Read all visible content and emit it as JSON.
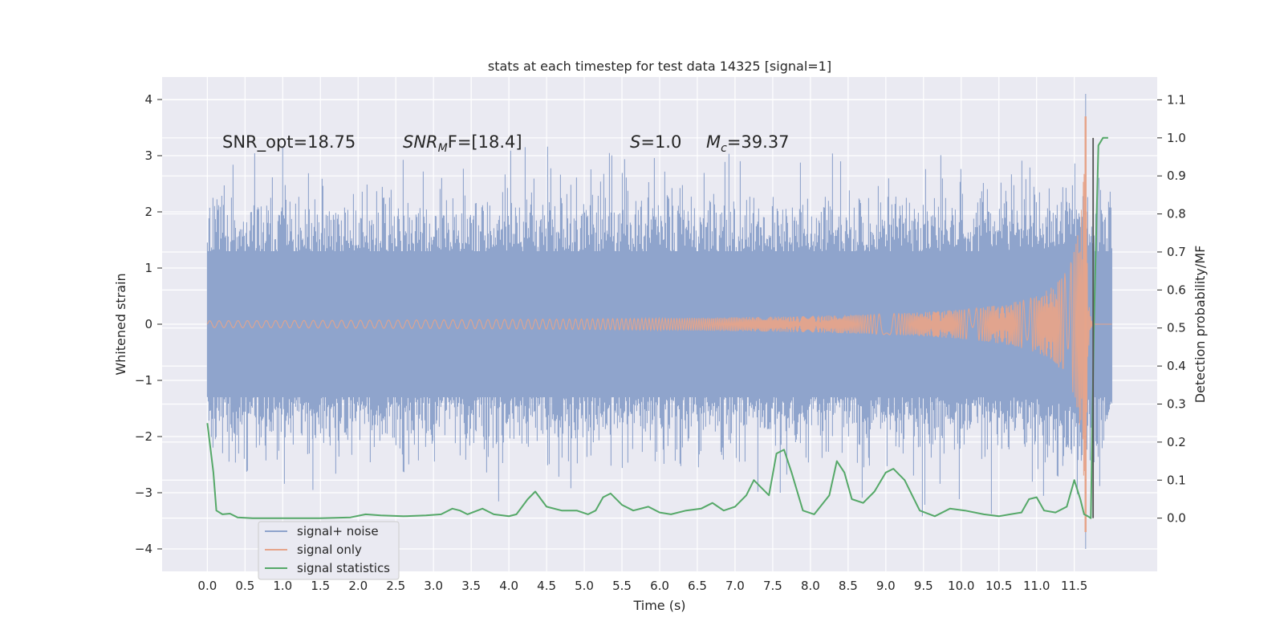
{
  "chart_data": {
    "type": "line",
    "title": "stats at each timestep for test data 14325 [signal=1]",
    "xlabel": "Time (s)",
    "ylabel": "Whitened strain",
    "y2label": "Detection probability/MF",
    "xlim": [
      -0.6,
      12.6
    ],
    "ylim": [
      -4.4,
      4.4
    ],
    "y2lim": [
      -0.14,
      1.16
    ],
    "x_ticks": [
      0.0,
      0.5,
      1.0,
      1.5,
      2.0,
      2.5,
      3.0,
      3.5,
      4.0,
      4.5,
      5.0,
      5.5,
      6.0,
      6.5,
      7.0,
      7.5,
      8.0,
      8.5,
      9.0,
      9.5,
      10.0,
      10.5,
      11.0,
      11.5
    ],
    "x_tick_labels": [
      "0.0",
      "0.5",
      "1.0",
      "1.5",
      "2.0",
      "2.5",
      "3.0",
      "3.5",
      "4.0",
      "4.5",
      "5.0",
      "5.5",
      "6.0",
      "6.5",
      "7.0",
      "7.5",
      "8.0",
      "8.5",
      "9.0",
      "9.5",
      "10.0",
      "10.5",
      "11.0",
      "11.5"
    ],
    "y_ticks": [
      -4,
      -3,
      -2,
      -1,
      0,
      1,
      2,
      3,
      4
    ],
    "y_tick_labels": [
      "−4",
      "−3",
      "−2",
      "−1",
      "0",
      "1",
      "2",
      "3",
      "4"
    ],
    "y2_ticks": [
      0.0,
      0.1,
      0.2,
      0.3,
      0.4,
      0.5,
      0.6,
      0.7,
      0.8,
      0.9,
      1.0,
      1.1
    ],
    "y2_tick_labels": [
      "0.0",
      "0.1",
      "0.2",
      "0.3",
      "0.4",
      "0.5",
      "0.6",
      "0.7",
      "0.8",
      "0.9",
      "1.0",
      "1.1"
    ],
    "grid": true,
    "legend_location": "lower-left",
    "series": [
      {
        "name": "signal+ noise",
        "axis": "left",
        "color": "#8fa4cc",
        "description": "noise-dominated whitened strain between about -2.2 and +2.2 with spikes, chirp peak near t=11.65",
        "x_range": [
          0.0,
          12.0
        ],
        "typical_envelope": [
          -1.7,
          1.7
        ],
        "peak_values": [
          {
            "x": 1.0,
            "y": 3.15
          },
          {
            "x": 1.4,
            "y": -2.95
          },
          {
            "x": 7.6,
            "y": -3.0
          },
          {
            "x": 8.4,
            "y": 2.9
          },
          {
            "x": 11.65,
            "y": 4.1
          },
          {
            "x": 11.65,
            "y": -4.0
          }
        ]
      },
      {
        "name": "signal only",
        "axis": "left",
        "color": "#e6a48a",
        "description": "chirp signal, near zero amplitude until ~8 s, growing to peak ~3.7 at t=11.65 then ringing down",
        "chirp_peak_time": 11.65,
        "chirp_peak_amplitude": 3.7
      },
      {
        "name": "signal statistics",
        "axis": "right",
        "color": "#55a868",
        "points": [
          [
            0.0,
            0.25
          ],
          [
            0.08,
            0.12
          ],
          [
            0.12,
            0.02
          ],
          [
            0.2,
            0.01
          ],
          [
            0.3,
            0.012
          ],
          [
            0.4,
            0.002
          ],
          [
            0.6,
            0.0
          ],
          [
            0.8,
            0.0
          ],
          [
            1.0,
            0.0
          ],
          [
            1.5,
            0.0
          ],
          [
            1.9,
            0.002
          ],
          [
            2.1,
            0.01
          ],
          [
            2.3,
            0.007
          ],
          [
            2.6,
            0.005
          ],
          [
            2.9,
            0.007
          ],
          [
            3.1,
            0.01
          ],
          [
            3.25,
            0.025
          ],
          [
            3.35,
            0.02
          ],
          [
            3.45,
            0.01
          ],
          [
            3.65,
            0.025
          ],
          [
            3.8,
            0.01
          ],
          [
            4.0,
            0.005
          ],
          [
            4.1,
            0.01
          ],
          [
            4.25,
            0.05
          ],
          [
            4.35,
            0.07
          ],
          [
            4.5,
            0.03
          ],
          [
            4.7,
            0.02
          ],
          [
            4.9,
            0.02
          ],
          [
            5.05,
            0.01
          ],
          [
            5.15,
            0.02
          ],
          [
            5.25,
            0.055
          ],
          [
            5.35,
            0.065
          ],
          [
            5.5,
            0.035
          ],
          [
            5.65,
            0.02
          ],
          [
            5.85,
            0.03
          ],
          [
            6.0,
            0.015
          ],
          [
            6.15,
            0.01
          ],
          [
            6.35,
            0.02
          ],
          [
            6.55,
            0.025
          ],
          [
            6.7,
            0.04
          ],
          [
            6.85,
            0.02
          ],
          [
            7.0,
            0.03
          ],
          [
            7.15,
            0.06
          ],
          [
            7.25,
            0.1
          ],
          [
            7.35,
            0.08
          ],
          [
            7.45,
            0.06
          ],
          [
            7.55,
            0.17
          ],
          [
            7.65,
            0.18
          ],
          [
            7.75,
            0.12
          ],
          [
            7.9,
            0.02
          ],
          [
            8.05,
            0.01
          ],
          [
            8.25,
            0.06
          ],
          [
            8.35,
            0.15
          ],
          [
            8.45,
            0.12
          ],
          [
            8.55,
            0.05
          ],
          [
            8.7,
            0.04
          ],
          [
            8.85,
            0.07
          ],
          [
            9.0,
            0.12
          ],
          [
            9.1,
            0.13
          ],
          [
            9.25,
            0.1
          ],
          [
            9.45,
            0.02
          ],
          [
            9.65,
            0.005
          ],
          [
            9.85,
            0.025
          ],
          [
            10.05,
            0.02
          ],
          [
            10.3,
            0.01
          ],
          [
            10.5,
            0.005
          ],
          [
            10.65,
            0.01
          ],
          [
            10.8,
            0.015
          ],
          [
            10.9,
            0.05
          ],
          [
            11.0,
            0.055
          ],
          [
            11.1,
            0.02
          ],
          [
            11.25,
            0.015
          ],
          [
            11.4,
            0.03
          ],
          [
            11.5,
            0.1
          ],
          [
            11.58,
            0.05
          ],
          [
            11.63,
            0.01
          ],
          [
            11.68,
            0.005
          ],
          [
            11.72,
            0.0
          ],
          [
            11.76,
            0.5
          ],
          [
            11.82,
            0.98
          ],
          [
            11.88,
            1.0
          ],
          [
            11.95,
            1.0
          ]
        ],
        "vertical_line_x": 11.75,
        "vertical_line_range": [
          0.0,
          1.0
        ]
      }
    ],
    "annotations": [
      {
        "text": "SNR_opt=18.75",
        "x": 0.2,
        "y": 3.3
      },
      {
        "text_parts": [
          "SNR",
          "M",
          "F=[18.4]"
        ],
        "x": 2.6,
        "y": 3.3
      },
      {
        "text_parts": [
          "S",
          "=1.0"
        ],
        "x": 5.6,
        "y": 3.3
      },
      {
        "text_parts": [
          "M",
          "c",
          "=39.37"
        ],
        "x": 6.6,
        "y": 3.3
      }
    ],
    "legend": {
      "entries": [
        {
          "label": "signal+ noise",
          "color": "#8fa4cc"
        },
        {
          "label": "signal only",
          "color": "#e6a48a"
        },
        {
          "label": "signal statistics",
          "color": "#55a868"
        }
      ]
    }
  }
}
